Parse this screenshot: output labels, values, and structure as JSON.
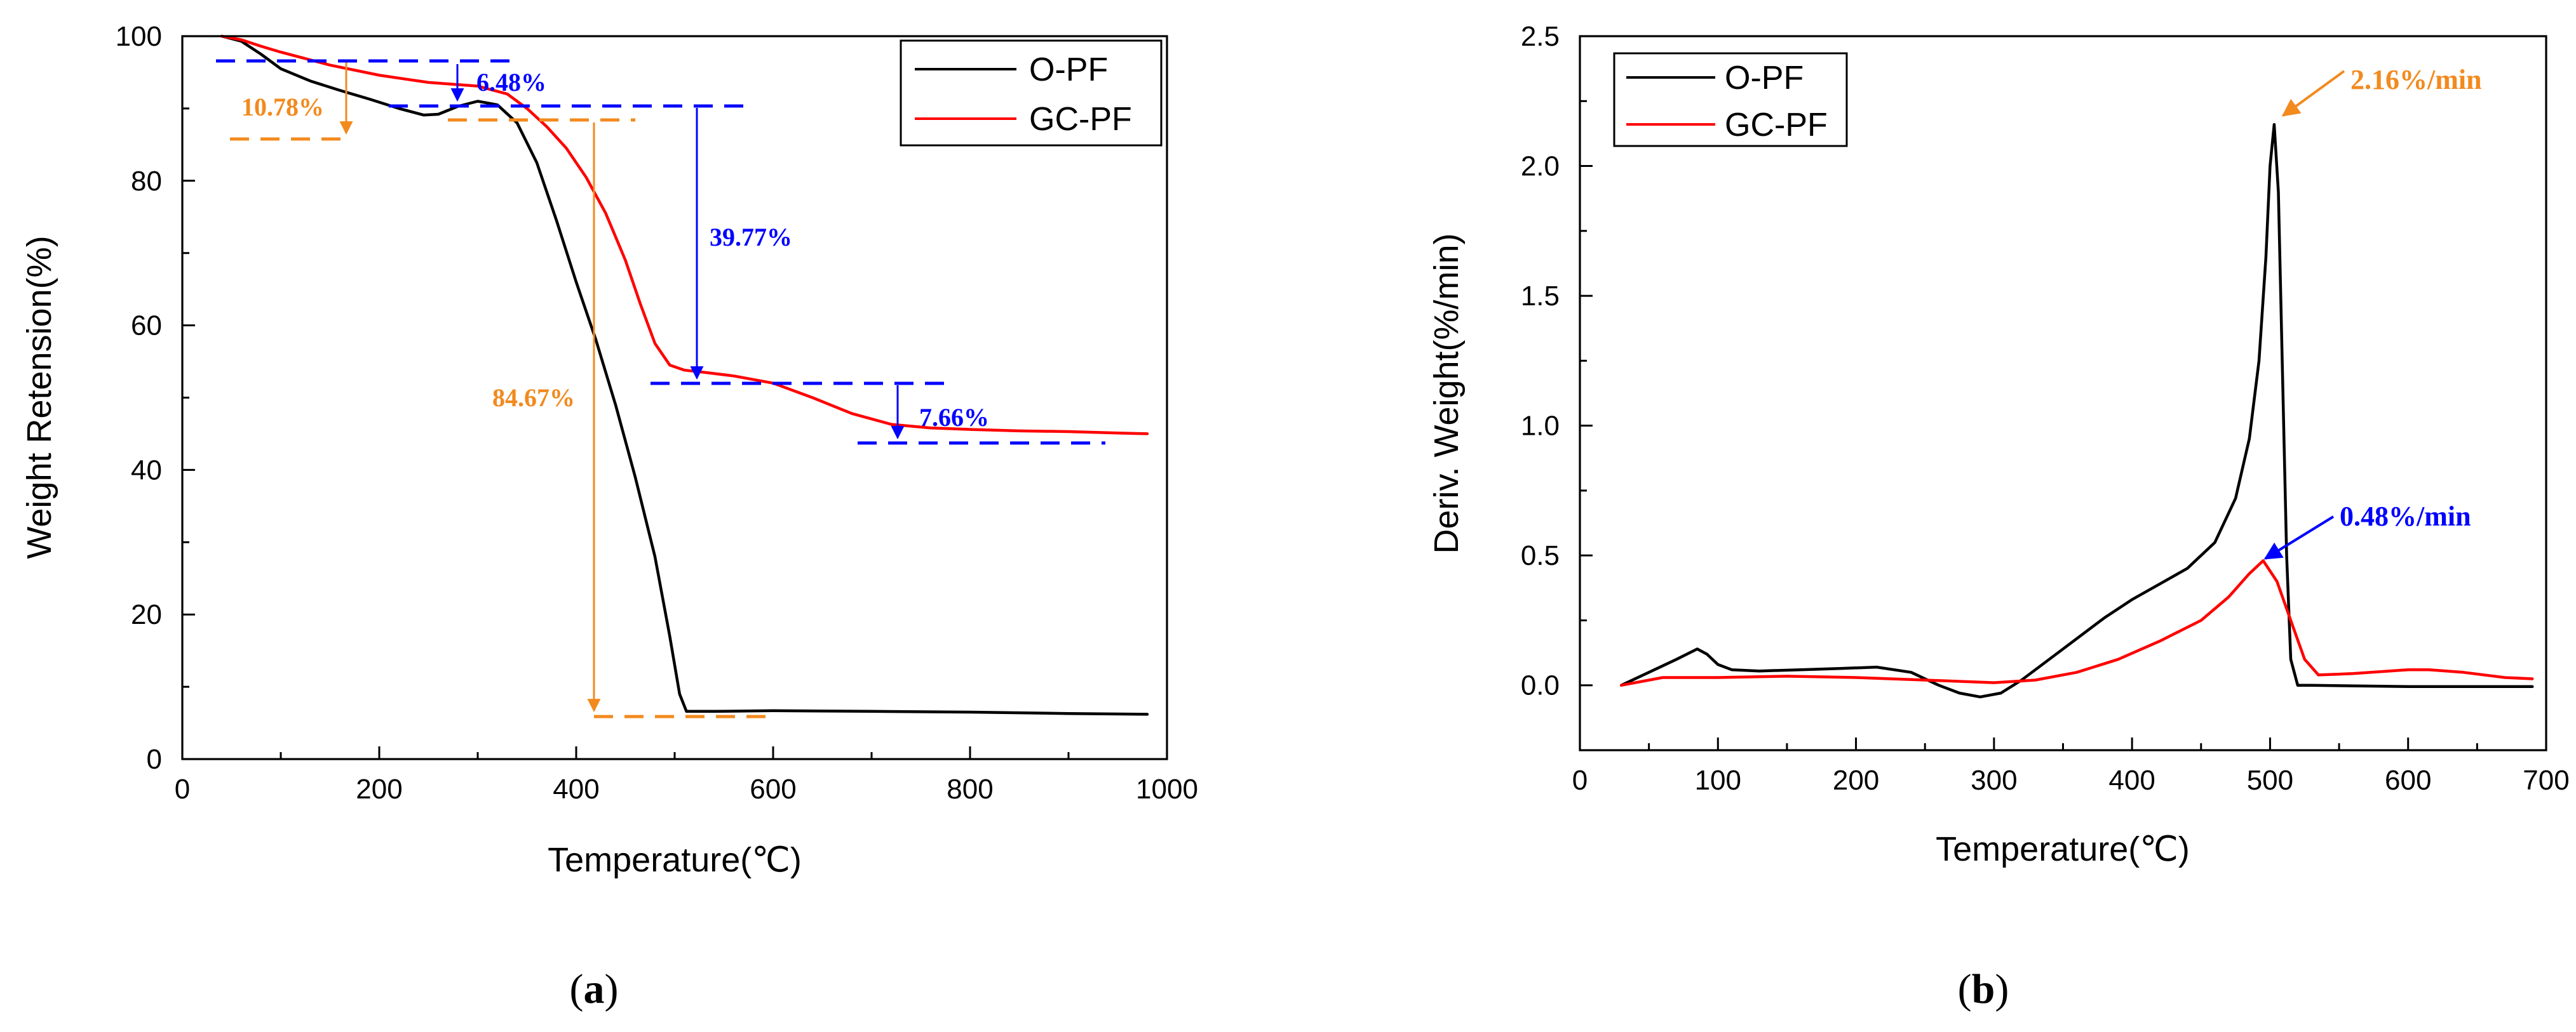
{
  "chart_data": [
    {
      "panel": "(a)",
      "panel_letter": "a",
      "type": "line",
      "xlabel": "Temperature(℃)",
      "ylabel": "Weight Retension(%)",
      "xlim": [
        0,
        1000
      ],
      "ylim": [
        0,
        100
      ],
      "xticks": [
        0,
        200,
        400,
        600,
        800,
        1000
      ],
      "yticks": [
        0,
        20,
        40,
        60,
        80,
        100
      ],
      "legend": {
        "position": "top-right",
        "entries": [
          "O-PF",
          "GC-PF"
        ]
      },
      "series": [
        {
          "name": "O-PF",
          "color": "#000000",
          "x": [
            40,
            60,
            80,
            100,
            130,
            160,
            190,
            220,
            245,
            260,
            280,
            300,
            320,
            340,
            360,
            380,
            400,
            420,
            440,
            460,
            480,
            495,
            505,
            512,
            520,
            540,
            600,
            700,
            800,
            900,
            980
          ],
          "y": [
            100,
            99.3,
            97.5,
            95.5,
            93.8,
            92.5,
            91.3,
            90.0,
            89.1,
            89.2,
            90.3,
            91.0,
            90.5,
            88.0,
            82.5,
            74.5,
            66.0,
            58.0,
            49.0,
            39.0,
            28.0,
            17.0,
            9.0,
            6.6,
            6.6,
            6.6,
            6.7,
            6.6,
            6.5,
            6.3,
            6.2
          ]
        },
        {
          "name": "GC-PF",
          "color": "#ff0000",
          "x": [
            40,
            60,
            80,
            100,
            150,
            200,
            250,
            300,
            330,
            350,
            370,
            390,
            410,
            430,
            450,
            465,
            480,
            495,
            510,
            530,
            560,
            600,
            640,
            680,
            720,
            760,
            800,
            850,
            900,
            950,
            980
          ],
          "y": [
            100,
            99.5,
            98.6,
            97.8,
            96.0,
            94.6,
            93.6,
            93.1,
            92.0,
            90.0,
            87.5,
            84.5,
            80.5,
            75.5,
            69.0,
            63.0,
            57.5,
            54.5,
            53.8,
            53.5,
            53.0,
            52.0,
            50.0,
            47.8,
            46.3,
            45.8,
            45.6,
            45.4,
            45.3,
            45.1,
            45.0
          ]
        }
      ],
      "annotations": [
        {
          "text": "10.78%",
          "color": "#f28a1e"
        },
        {
          "text": "6.48%",
          "color": "#0000ff"
        },
        {
          "text": "39.77%",
          "color": "#0000ff"
        },
        {
          "text": "84.67%",
          "color": "#f28a1e"
        },
        {
          "text": "7.66%",
          "color": "#0000ff"
        }
      ]
    },
    {
      "panel": "(b)",
      "panel_letter": "b",
      "type": "line",
      "xlabel": "Temperature(℃)",
      "ylabel": "Deriv. Weight(%/min)",
      "xlim": [
        0,
        700
      ],
      "ylim": [
        -0.25,
        2.5
      ],
      "xticks": [
        0,
        100,
        200,
        300,
        400,
        500,
        600,
        700
      ],
      "yticks": [
        0.0,
        0.5,
        1.0,
        1.5,
        2.0,
        2.5
      ],
      "ytick_labels": [
        "0.0",
        "0.5",
        "1.0",
        "1.5",
        "2.0",
        "2.5"
      ],
      "legend": {
        "position": "top-left",
        "entries": [
          "O-PF",
          "GC-PF"
        ]
      },
      "series": [
        {
          "name": "O-PF",
          "color": "#000000",
          "x": [
            30,
            50,
            70,
            85,
            92,
            100,
            110,
            130,
            160,
            190,
            215,
            240,
            260,
            275,
            290,
            305,
            320,
            350,
            380,
            400,
            420,
            440,
            460,
            475,
            485,
            492,
            497,
            500,
            503,
            506,
            509,
            512,
            515,
            520,
            530,
            600,
            690
          ],
          "y": [
            0.0,
            0.05,
            0.1,
            0.14,
            0.12,
            0.08,
            0.06,
            0.055,
            0.06,
            0.065,
            0.07,
            0.05,
            0.0,
            -0.03,
            -0.045,
            -0.03,
            0.02,
            0.14,
            0.26,
            0.33,
            0.39,
            0.45,
            0.55,
            0.72,
            0.95,
            1.25,
            1.65,
            2.0,
            2.16,
            1.9,
            1.2,
            0.5,
            0.1,
            0.0,
            0.0,
            -0.005,
            -0.005
          ]
        },
        {
          "name": "GC-PF",
          "color": "#ff0000",
          "x": [
            30,
            60,
            80,
            100,
            150,
            200,
            250,
            300,
            330,
            360,
            390,
            420,
            450,
            470,
            485,
            495,
            505,
            515,
            525,
            535,
            560,
            600,
            615,
            640,
            670,
            690
          ],
          "y": [
            0.0,
            0.03,
            0.03,
            0.03,
            0.035,
            0.03,
            0.02,
            0.01,
            0.02,
            0.05,
            0.1,
            0.17,
            0.25,
            0.34,
            0.43,
            0.48,
            0.4,
            0.25,
            0.1,
            0.04,
            0.045,
            0.06,
            0.06,
            0.05,
            0.03,
            0.025
          ]
        }
      ],
      "annotations": [
        {
          "text": "2.16%/min",
          "color": "#f28a1e"
        },
        {
          "text": "0.48%/min",
          "color": "#0000ff"
        }
      ]
    }
  ]
}
